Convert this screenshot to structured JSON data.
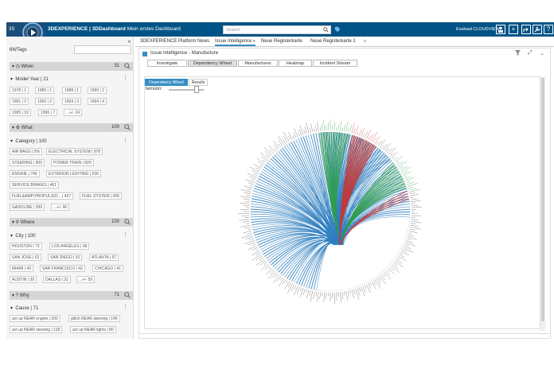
{
  "header": {
    "brand_bold": "3DEXPERIENCE | 3DDashboard",
    "brand_rest": " Mein erstes Dashboard",
    "search_placeholder": "Search",
    "user": "Exalead CLOUDVIEW"
  },
  "left": {
    "title": "6WTags",
    "sections": [
      {
        "label": "When",
        "count": "31"
      },
      {
        "label": "What",
        "count": "100"
      },
      {
        "label": "Where",
        "count": "100"
      },
      {
        "label": "Why",
        "count": "71"
      }
    ],
    "model_year": {
      "label": "Model Year",
      "count": "21"
    },
    "years": [
      {
        "name": "1978",
        "count": "1"
      },
      {
        "name": "1985",
        "count": "1"
      },
      {
        "name": "1988",
        "count": "1"
      },
      {
        "name": "1990",
        "count": "2"
      },
      {
        "name": "1991",
        "count": "2"
      },
      {
        "name": "1992",
        "count": "2"
      },
      {
        "name": "1993",
        "count": "3"
      },
      {
        "name": "1994",
        "count": "4"
      },
      {
        "name": "1995",
        "count": "19"
      },
      {
        "name": "1996",
        "count": "7"
      }
    ],
    "years_more": "...+/- 24",
    "category": {
      "label": "Category",
      "count": "100"
    },
    "categories": [
      {
        "name": "AIR BAGS",
        "count": "5%"
      },
      {
        "name": "ELECTRICAL SYSTEM",
        "count": "978"
      },
      {
        "name": "STEERING",
        "count": "900"
      },
      {
        "name": "POWER TRAIN",
        "count": "820"
      },
      {
        "name": "ENGINE",
        "count": "749"
      },
      {
        "name": "EXTERIOR LIGHTING",
        "count": "536"
      },
      {
        "name": "SERVICE BRAKES",
        "count": "461"
      },
      {
        "name": "FUEL&AMP;PROPULSIO...",
        "count": "437"
      },
      {
        "name": "FUEL SYSTEM",
        "count": "426"
      },
      {
        "name": "GASOLINE",
        "count": "399"
      }
    ],
    "categories_more": "...+/- 96",
    "city": {
      "label": "City",
      "count": "100"
    },
    "cities": [
      {
        "name": "HOUSTON",
        "count": "73"
      },
      {
        "name": "LOS ANGELES",
        "count": "68"
      },
      {
        "name": "SAN JOSE",
        "count": "62"
      },
      {
        "name": "SAN DIEGO",
        "count": "61"
      },
      {
        "name": "ATLANTA",
        "count": "57"
      },
      {
        "name": "MIAMI",
        "count": "43"
      },
      {
        "name": "SAN FRANCISCO",
        "count": "43"
      },
      {
        "name": "CHICAGO",
        "count": "41"
      },
      {
        "name": "AUSTIN",
        "count": "39"
      },
      {
        "name": "DALLAS",
        "count": "31"
      }
    ],
    "cities_more": "...+/- 59",
    "cause": {
      "label": "Cause",
      "count": "71"
    },
    "causes": [
      {
        "name": "act up NEAR engine",
        "count": "200"
      },
      {
        "name": "glitch NEAR steering",
        "count": "149"
      },
      {
        "name": "act up NEAR steering",
        "count": "118"
      },
      {
        "name": "act up NEAR lights",
        "count": "80"
      }
    ]
  },
  "tabs": [
    {
      "label": "3DEXPERIENCE Platform News",
      "active": false
    },
    {
      "label": "Issue Intelligence",
      "active": true
    },
    {
      "label": "Neue Registerkarte",
      "active": false
    },
    {
      "label": "Neue Registerkarte 1",
      "active": false
    }
  ],
  "widget": {
    "title": "Issue Intelligence - Manufacture",
    "subtabs": [
      "Investigate",
      "Dependency Wheel",
      "Manufactures",
      "Heatmap",
      "Incident Stream"
    ],
    "active_subtab": "Dependency Wheel",
    "buttons": [
      "Dependency Wheel",
      "Results"
    ],
    "tension_label": "tension:"
  },
  "colors": {
    "brand_blue": "#005386",
    "accent": "#368ec4",
    "chord_blue": "#2f7fbf",
    "chord_green": "#2e9e4b",
    "chord_red": "#c23a3a"
  }
}
